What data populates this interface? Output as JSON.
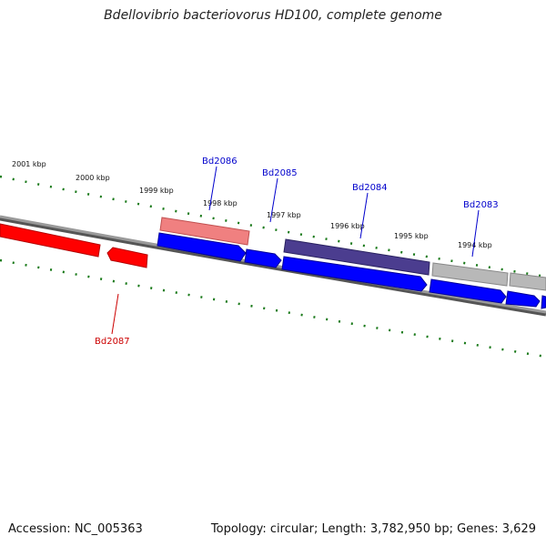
{
  "title": "Bdellovibrio bacteriovorus HD100, complete genome",
  "footer": {
    "accession": "Accession: NC_005363",
    "summary": "Topology: circular; Length: 3,782,950 bp; Genes: 3,629"
  },
  "colors": {
    "forward_strand": "#0000ff",
    "reverse_strand": "#ff0000",
    "ticks": "#1a7a1a",
    "backbone": "#808080",
    "forward_label": "#0000cc",
    "reverse_label": "#cc0000"
  },
  "scale_labels": [
    "2001 kbp",
    "2000 kbp",
    "1999 kbp",
    "1998 kbp",
    "1997 kbp",
    "1996 kbp",
    "1995 kbp",
    "1994 kbp"
  ],
  "gene_labels": [
    {
      "name": "Bd2086",
      "strand": "forward"
    },
    {
      "name": "Bd2085",
      "strand": "forward"
    },
    {
      "name": "Bd2084",
      "strand": "forward"
    },
    {
      "name": "Bd2083",
      "strand": "forward"
    },
    {
      "name": "Bd2087",
      "strand": "reverse"
    }
  ]
}
